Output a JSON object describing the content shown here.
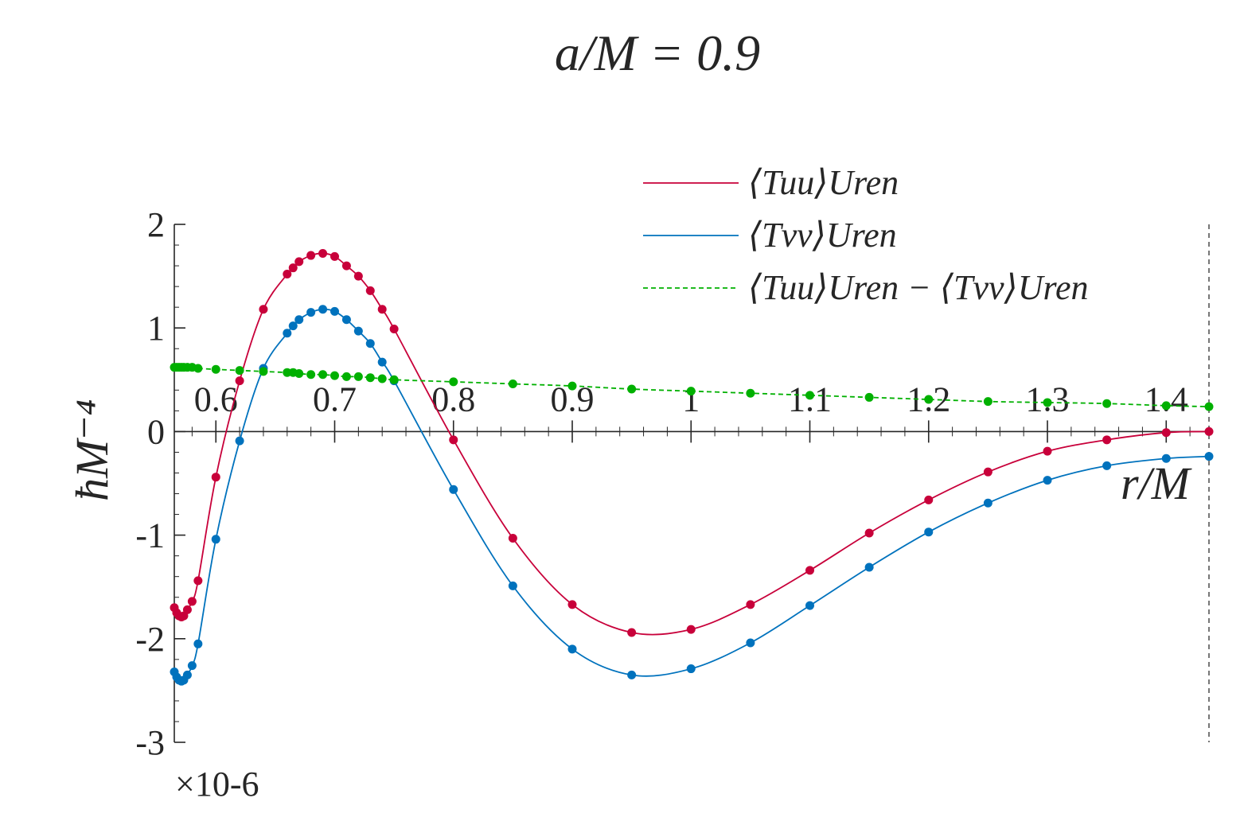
{
  "chart_data": {
    "type": "line",
    "title": "a/M = 0.9",
    "xlabel": "r/M",
    "ylabel": "ħM⁻⁴",
    "y_multiplier": "×10-6",
    "x_tick_labels": [
      "0.6",
      "0.7",
      "0.8",
      "0.9",
      "1",
      "1.1",
      "1.2",
      "1.3",
      "1.4"
    ],
    "x_ticks": [
      0.6,
      0.7,
      0.8,
      0.9,
      1.0,
      1.1,
      1.2,
      1.3,
      1.4
    ],
    "y_tick_labels": [
      "2",
      "1",
      "0",
      "-1",
      "-2",
      "-3"
    ],
    "y_ticks": [
      2,
      1,
      0,
      -1,
      -2,
      -3
    ],
    "xlim": [
      0.565,
      1.436
    ],
    "ylim": [
      -3,
      2
    ],
    "grid": false,
    "legend_position": "top-right",
    "vertical_reference_line_x": 1.436,
    "series": [
      {
        "name": "⟨Tuu⟩Uren",
        "color": "#c8003a",
        "line_style": "solid",
        "x": [
          0.565,
          0.567,
          0.569,
          0.571,
          0.573,
          0.576,
          0.58,
          0.585,
          0.6,
          0.62,
          0.64,
          0.66,
          0.665,
          0.67,
          0.68,
          0.69,
          0.7,
          0.71,
          0.72,
          0.73,
          0.74,
          0.75,
          0.8,
          0.85,
          0.9,
          0.95,
          1.0,
          1.05,
          1.1,
          1.15,
          1.2,
          1.25,
          1.3,
          1.35,
          1.4,
          1.436
        ],
        "y": [
          -1.7,
          -1.75,
          -1.78,
          -1.79,
          -1.78,
          -1.72,
          -1.64,
          -1.44,
          -0.44,
          0.49,
          1.18,
          1.52,
          1.58,
          1.64,
          1.7,
          1.72,
          1.69,
          1.6,
          1.5,
          1.36,
          1.18,
          0.99,
          -0.08,
          -1.03,
          -1.67,
          -1.94,
          -1.91,
          -1.67,
          -1.34,
          -0.98,
          -0.66,
          -0.39,
          -0.19,
          -0.08,
          -0.01,
          0.0
        ]
      },
      {
        "name": "⟨Tvv⟩Uren",
        "color": "#0072bd",
        "line_style": "solid",
        "x": [
          0.565,
          0.567,
          0.569,
          0.571,
          0.573,
          0.576,
          0.58,
          0.585,
          0.6,
          0.62,
          0.64,
          0.66,
          0.665,
          0.67,
          0.68,
          0.69,
          0.7,
          0.71,
          0.72,
          0.73,
          0.74,
          0.75,
          0.8,
          0.85,
          0.9,
          0.95,
          1.0,
          1.05,
          1.1,
          1.15,
          1.2,
          1.25,
          1.3,
          1.35,
          1.4,
          1.436
        ],
        "y": [
          -2.32,
          -2.37,
          -2.4,
          -2.41,
          -2.4,
          -2.35,
          -2.26,
          -2.05,
          -1.04,
          -0.09,
          0.61,
          0.95,
          1.02,
          1.08,
          1.15,
          1.18,
          1.16,
          1.08,
          0.97,
          0.85,
          0.67,
          0.49,
          -0.56,
          -1.49,
          -2.1,
          -2.35,
          -2.29,
          -2.04,
          -1.68,
          -1.31,
          -0.97,
          -0.69,
          -0.47,
          -0.33,
          -0.26,
          -0.24
        ]
      },
      {
        "name": "⟨Tuu⟩Uren − ⟨Tvv⟩Uren",
        "color": "#00b000",
        "line_style": "dashed",
        "x": [
          0.565,
          0.567,
          0.569,
          0.571,
          0.573,
          0.576,
          0.58,
          0.585,
          0.6,
          0.62,
          0.64,
          0.66,
          0.665,
          0.67,
          0.68,
          0.69,
          0.7,
          0.71,
          0.72,
          0.73,
          0.74,
          0.75,
          0.8,
          0.85,
          0.9,
          0.95,
          1.0,
          1.05,
          1.1,
          1.15,
          1.2,
          1.25,
          1.3,
          1.35,
          1.4,
          1.436
        ],
        "y": [
          0.62,
          0.62,
          0.62,
          0.62,
          0.62,
          0.62,
          0.62,
          0.61,
          0.6,
          0.59,
          0.58,
          0.57,
          0.57,
          0.56,
          0.55,
          0.55,
          0.54,
          0.53,
          0.53,
          0.52,
          0.51,
          0.5,
          0.48,
          0.46,
          0.44,
          0.41,
          0.39,
          0.37,
          0.35,
          0.33,
          0.31,
          0.29,
          0.28,
          0.27,
          0.25,
          0.24
        ]
      }
    ]
  }
}
